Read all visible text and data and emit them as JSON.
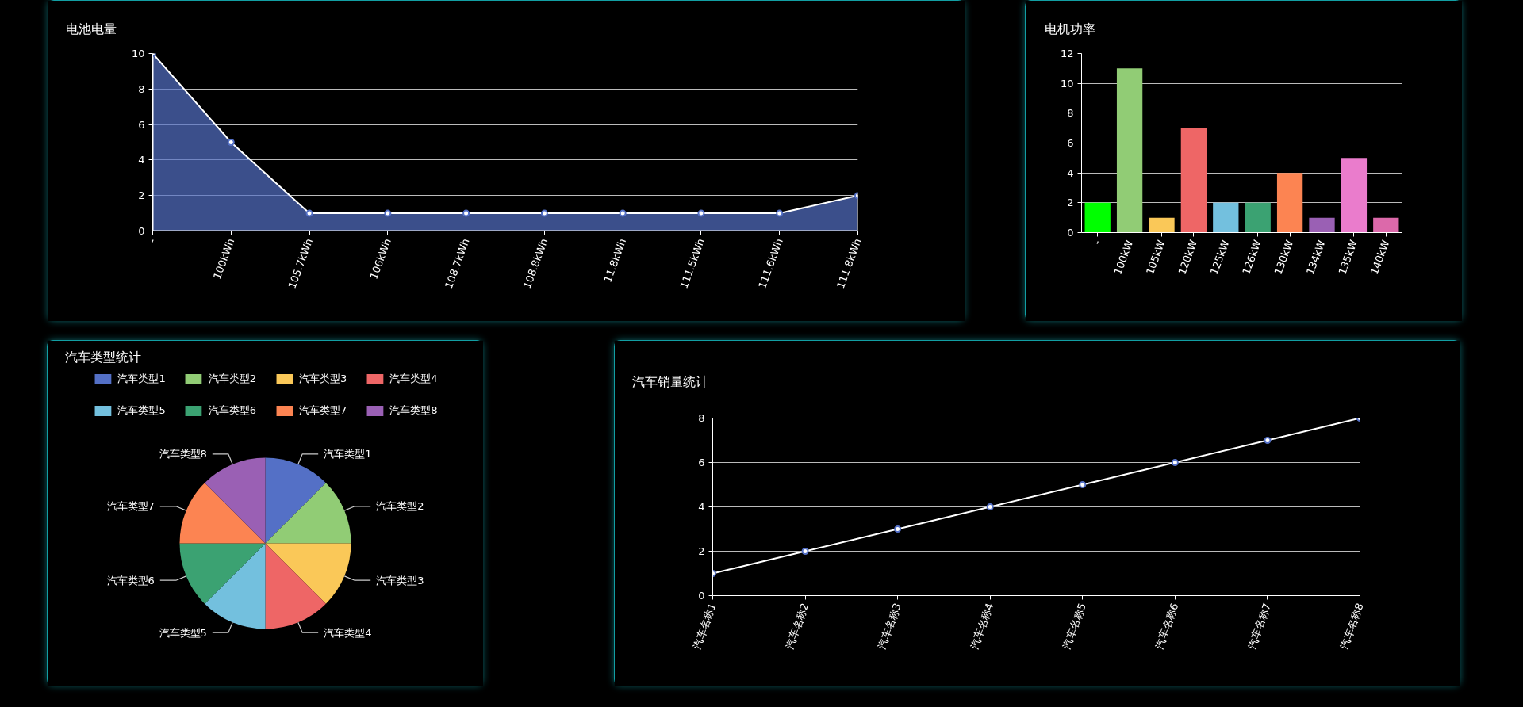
{
  "chart_data": [
    {
      "type": "area",
      "title": "电池电量",
      "categories": [
        "-",
        "100kWh",
        "105.7kWh",
        "106kWh",
        "108.7kWh",
        "108.8kWh",
        "11.8kWh",
        "111.5kWh",
        "111.6kWh",
        "111.8kWh"
      ],
      "values": [
        10,
        5,
        1,
        1,
        1,
        1,
        1,
        1,
        1,
        2
      ],
      "color": "#5470c6",
      "ylim": [
        0,
        10
      ],
      "yticks": [
        0,
        2,
        4,
        6,
        8,
        10
      ],
      "grid": "y",
      "marker": "circle"
    },
    {
      "type": "bar",
      "title": "电机功率",
      "categories": [
        "-",
        "100kW",
        "105kW",
        "120kW",
        "125kW",
        "126kW",
        "130kW",
        "134kW",
        "135kW",
        "140kW"
      ],
      "values": [
        2,
        11,
        1,
        7,
        2,
        2,
        4,
        1,
        5,
        1
      ],
      "colors": [
        "#00ff00",
        "#91cc75",
        "#fac858",
        "#ee6666",
        "#73c0de",
        "#3ba272",
        "#fc8452",
        "#9a60b4",
        "#ea7ccc",
        "#dc69aa"
      ],
      "ylim": [
        0,
        12
      ],
      "yticks": [
        0,
        2,
        4,
        6,
        8,
        10,
        12
      ],
      "grid": "y"
    },
    {
      "type": "pie",
      "title": "汽车类型统计",
      "categories": [
        "汽车类型1",
        "汽车类型2",
        "汽车类型3",
        "汽车类型4",
        "汽车类型5",
        "汽车类型6",
        "汽车类型7",
        "汽车类型8"
      ],
      "values": [
        12.5,
        12.5,
        12.5,
        12.5,
        12.5,
        12.5,
        12.5,
        12.5
      ],
      "colors": [
        "#5470c6",
        "#91cc75",
        "#fac858",
        "#ee6666",
        "#73c0de",
        "#3ba272",
        "#fc8452",
        "#9a60b4"
      ],
      "legend": "top"
    },
    {
      "type": "line",
      "title": "汽车销量统计",
      "categories": [
        "汽车名称1",
        "汽车名称2",
        "汽车名称3",
        "汽车名称4",
        "汽车名称5",
        "汽车名称6",
        "汽车名称7",
        "汽车名称8"
      ],
      "values": [
        1,
        2,
        3,
        4,
        5,
        6,
        7,
        8
      ],
      "color": "#5470c6",
      "ylim": [
        0,
        8
      ],
      "yticks": [
        0,
        2,
        4,
        6,
        8
      ],
      "grid": "y",
      "marker": "circle"
    }
  ]
}
